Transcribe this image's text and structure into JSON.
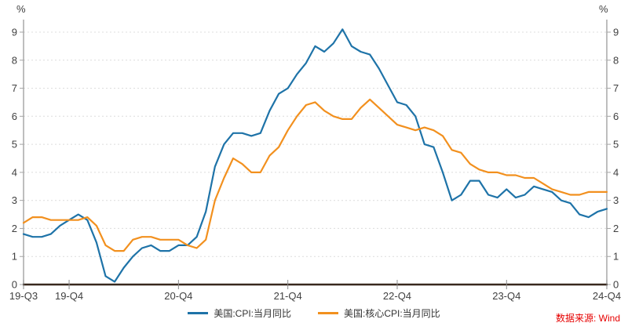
{
  "chart_data": {
    "type": "line",
    "title": "",
    "unit": "%",
    "xlabel": "",
    "ylabel": "%",
    "ylim": [
      0,
      9
    ],
    "y_ticks": [
      0,
      1,
      2,
      3,
      4,
      5,
      6,
      7,
      8,
      9
    ],
    "grid": "horizontal-dashed",
    "legend_position": "bottom-center",
    "x": [
      "2019-07",
      "2019-08",
      "2019-09",
      "2019-10",
      "2019-11",
      "2019-12",
      "2020-01",
      "2020-02",
      "2020-03",
      "2020-04",
      "2020-05",
      "2020-06",
      "2020-07",
      "2020-08",
      "2020-09",
      "2020-10",
      "2020-11",
      "2020-12",
      "2021-01",
      "2021-02",
      "2021-03",
      "2021-04",
      "2021-05",
      "2021-06",
      "2021-07",
      "2021-08",
      "2021-09",
      "2021-10",
      "2021-11",
      "2021-12",
      "2022-01",
      "2022-02",
      "2022-03",
      "2022-04",
      "2022-05",
      "2022-06",
      "2022-07",
      "2022-08",
      "2022-09",
      "2022-10",
      "2022-11",
      "2022-12",
      "2023-01",
      "2023-02",
      "2023-03",
      "2023-04",
      "2023-05",
      "2023-06",
      "2023-07",
      "2023-08",
      "2023-09",
      "2023-10",
      "2023-11",
      "2023-12",
      "2024-01",
      "2024-02",
      "2024-03",
      "2024-04",
      "2024-05",
      "2024-06",
      "2024-07",
      "2024-08",
      "2024-09",
      "2024-10",
      "2024-11"
    ],
    "x_ticks": [
      {
        "label": "19-Q3",
        "index": 0
      },
      {
        "label": "19-Q4",
        "index": 5
      },
      {
        "label": "20-Q4",
        "index": 17
      },
      {
        "label": "21-Q4",
        "index": 29
      },
      {
        "label": "22-Q4",
        "index": 41
      },
      {
        "label": "23-Q4",
        "index": 53
      },
      {
        "label": "24-Q4",
        "index": 64
      }
    ],
    "series": [
      {
        "name": "美国:CPI:当月同比",
        "color": "#1e73a8",
        "values": [
          1.8,
          1.7,
          1.7,
          1.8,
          2.1,
          2.3,
          2.5,
          2.3,
          1.5,
          0.3,
          0.1,
          0.6,
          1.0,
          1.3,
          1.4,
          1.2,
          1.2,
          1.4,
          1.4,
          1.7,
          2.6,
          4.2,
          5.0,
          5.4,
          5.4,
          5.3,
          5.4,
          6.2,
          6.8,
          7.0,
          7.5,
          7.9,
          8.5,
          8.3,
          8.6,
          9.1,
          8.5,
          8.3,
          8.2,
          7.7,
          7.1,
          6.5,
          6.4,
          6.0,
          5.0,
          4.9,
          4.0,
          3.0,
          3.2,
          3.7,
          3.7,
          3.2,
          3.1,
          3.4,
          3.1,
          3.2,
          3.5,
          3.4,
          3.3,
          3.0,
          2.9,
          2.5,
          2.4,
          2.6,
          2.7
        ]
      },
      {
        "name": "美国:核心CPI:当月同比",
        "color": "#f2901e",
        "values": [
          2.2,
          2.4,
          2.4,
          2.3,
          2.3,
          2.3,
          2.3,
          2.4,
          2.1,
          1.4,
          1.2,
          1.2,
          1.6,
          1.7,
          1.7,
          1.6,
          1.6,
          1.6,
          1.4,
          1.3,
          1.6,
          3.0,
          3.8,
          4.5,
          4.3,
          4.0,
          4.0,
          4.6,
          4.9,
          5.5,
          6.0,
          6.4,
          6.5,
          6.2,
          6.0,
          5.9,
          5.9,
          6.3,
          6.6,
          6.3,
          6.0,
          5.7,
          5.6,
          5.5,
          5.6,
          5.5,
          5.3,
          4.8,
          4.7,
          4.3,
          4.1,
          4.0,
          4.0,
          3.9,
          3.9,
          3.8,
          3.8,
          3.6,
          3.4,
          3.3,
          3.2,
          3.2,
          3.3,
          3.3,
          3.3
        ]
      }
    ],
    "colors": {
      "grid": "#dcdcdc",
      "y_axis": "#a3a3a3",
      "x_axis": "#38281e",
      "tick_text": "#404040",
      "source_text": "#e60000"
    }
  },
  "footer": {
    "source": "数据来源: Wind"
  }
}
